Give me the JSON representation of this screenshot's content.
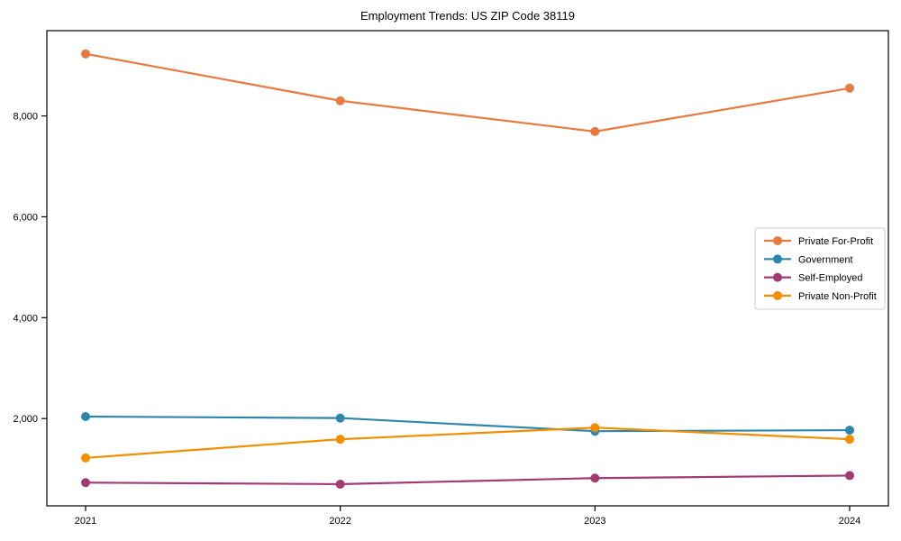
{
  "page": {
    "background": "#ffffff"
  },
  "chart_data": {
    "type": "line",
    "title": "Employment Trends: US ZIP Code 38119",
    "xlabel": "",
    "ylabel": "",
    "x_categories": [
      "2021",
      "2022",
      "2023",
      "2024"
    ],
    "series": [
      {
        "name": "Private For-Profit",
        "color": "#E8793F",
        "values": [
          9230,
          8300,
          7690,
          8550
        ]
      },
      {
        "name": "Government",
        "color": "#2E86AB",
        "values": [
          2040,
          2010,
          1750,
          1770
        ]
      },
      {
        "name": "Self-Employed",
        "color": "#A23B72",
        "values": [
          730,
          700,
          820,
          870
        ]
      },
      {
        "name": "Private Non-Profit",
        "color": "#F18F01",
        "values": [
          1220,
          1590,
          1820,
          1590
        ]
      }
    ],
    "yticks": [
      {
        "value": 2000,
        "label": "2,000"
      },
      {
        "value": 4000,
        "label": "4,000"
      },
      {
        "value": 6000,
        "label": "6,000"
      },
      {
        "value": 8000,
        "label": "8,000"
      }
    ],
    "ylim": [
      270,
      9690
    ],
    "grid": false,
    "marker": "circle",
    "legend_position": "center-right",
    "axis_color": "#000000",
    "text_color": "#000000",
    "legend_border_color": "#cccccc",
    "legend_background": "#ffffff"
  }
}
